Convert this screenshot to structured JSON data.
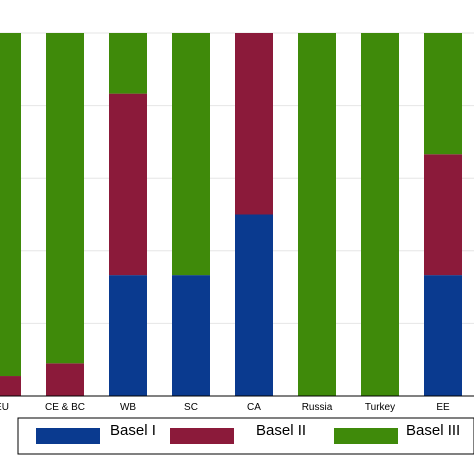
{
  "chart_data": {
    "type": "bar",
    "stacked": true,
    "categories": [
      "EU",
      "CE & BC",
      "WB",
      "SC",
      "CA",
      "Russia",
      "Turkey",
      "EE"
    ],
    "ylim": [
      0,
      100
    ],
    "grid": "horizontal",
    "legend_position": "bottom",
    "series": [
      {
        "name": "Basel I",
        "color": "#0a3a8f",
        "values": [
          0,
          0,
          33.3,
          33.3,
          50,
          0,
          0,
          33.3
        ]
      },
      {
        "name": "Basel II",
        "color": "#8b1a3a",
        "values": [
          5.5,
          9,
          50,
          0,
          50,
          0,
          0,
          33.3
        ]
      },
      {
        "name": "Basel III",
        "color": "#3f8a0a",
        "values": [
          94.5,
          91,
          16.7,
          66.7,
          0,
          100,
          100,
          33.4
        ]
      }
    ]
  }
}
